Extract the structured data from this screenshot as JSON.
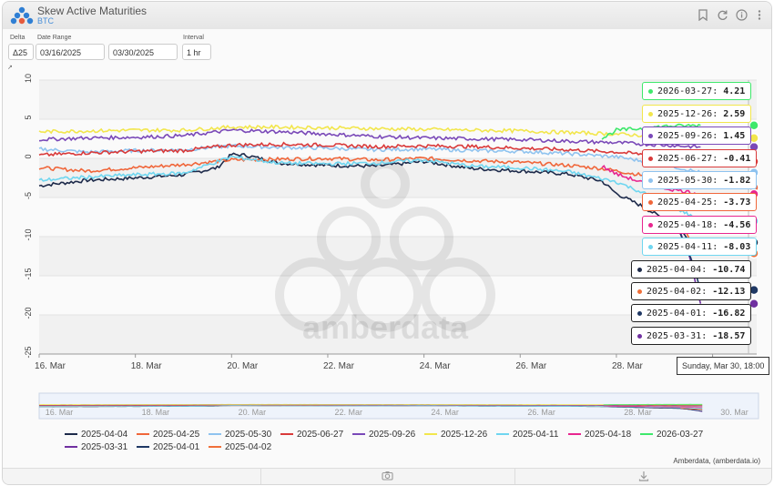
{
  "header": {
    "title": "Skew Active Maturities",
    "subtitle": "BTC",
    "icons": [
      "bookmark-icon",
      "refresh-icon",
      "info-icon",
      "menu-dots-icon"
    ]
  },
  "controls": {
    "delta_label": "Delta",
    "delta_value": "Δ25",
    "date_range_label": "Date Range",
    "date_start": "03/16/2025",
    "date_end": "03/30/2025",
    "interval_label": "Interval",
    "interval_value": "1 hr"
  },
  "watermark": "amberdata",
  "credit": "Amberdata, (amberdata.io)",
  "time_tooltip": "Sunday, Mar 30, 18:00",
  "chart_data": {
    "type": "line",
    "x_range": [
      "2025-03-16",
      "2025-03-30T22:00"
    ],
    "x_tick_labels": [
      "16. Mar",
      "18. Mar",
      "20. Mar",
      "22. Mar",
      "24. Mar",
      "26. Mar",
      "28. Mar",
      "30. Mar"
    ],
    "y_tick_labels": [
      "10",
      "5",
      "0",
      "-5",
      "-10",
      "-15",
      "-20",
      "-25"
    ],
    "ylim": [
      -25,
      10
    ],
    "y_ticks": [
      10,
      5,
      0,
      -5,
      -10,
      -15,
      -20,
      -25
    ],
    "grid": true,
    "legend_position": "bottom",
    "series": [
      {
        "name": "2025-04-04",
        "color": "#1d2a4a",
        "points": [
          [
            0,
            -3.5
          ],
          [
            1,
            -2.8
          ],
          [
            2,
            -2.5
          ],
          [
            3,
            -2.1
          ],
          [
            3.7,
            -1.2
          ],
          [
            4,
            0.5
          ],
          [
            4.3,
            0.4
          ],
          [
            5,
            -0.6
          ],
          [
            6,
            -0.9
          ],
          [
            7,
            -1.0
          ],
          [
            8,
            -0.4
          ],
          [
            9,
            -1.3
          ],
          [
            10,
            -1.6
          ],
          [
            11,
            -2.0
          ],
          [
            11.7,
            -2.9
          ],
          [
            12,
            -4.5
          ],
          [
            12.5,
            -6.0
          ],
          [
            13.2,
            -8.5
          ],
          [
            13.5,
            -10.2
          ],
          [
            13.75,
            -10.74
          ]
        ]
      },
      {
        "name": "2025-04-25",
        "color": "#f0663a",
        "points": [
          [
            0,
            -1.2
          ],
          [
            1,
            -1.6
          ],
          [
            2,
            -1.2
          ],
          [
            3,
            -0.8
          ],
          [
            4,
            -0.2
          ],
          [
            5,
            -0.1
          ],
          [
            6,
            0.0
          ],
          [
            7,
            -0.2
          ],
          [
            8,
            0.0
          ],
          [
            9,
            -0.3
          ],
          [
            10,
            -0.5
          ],
          [
            11,
            -0.9
          ],
          [
            11.7,
            -1.3
          ],
          [
            12,
            -1.6
          ],
          [
            13,
            -2.6
          ],
          [
            13.75,
            -3.73
          ]
        ]
      },
      {
        "name": "2025-05-30",
        "color": "#8fc3ef",
        "points": [
          [
            0,
            1.2
          ],
          [
            1,
            0.8
          ],
          [
            2,
            1.0
          ],
          [
            3,
            1.1
          ],
          [
            4,
            1.6
          ],
          [
            5,
            1.4
          ],
          [
            6,
            1.3
          ],
          [
            7,
            1.1
          ],
          [
            8,
            1.2
          ],
          [
            9,
            1.0
          ],
          [
            10,
            0.9
          ],
          [
            11,
            0.6
          ],
          [
            12,
            0.2
          ],
          [
            13,
            -0.8
          ],
          [
            13.75,
            -1.82
          ]
        ]
      },
      {
        "name": "2025-06-27",
        "color": "#d93a3a",
        "points": [
          [
            0,
            0.4
          ],
          [
            1,
            0.7
          ],
          [
            2,
            0.9
          ],
          [
            3,
            1.0
          ],
          [
            4,
            1.7
          ],
          [
            5,
            1.8
          ],
          [
            6,
            1.7
          ],
          [
            7,
            1.5
          ],
          [
            8,
            1.6
          ],
          [
            9,
            1.5
          ],
          [
            10,
            1.3
          ],
          [
            11,
            1.1
          ],
          [
            12,
            0.8
          ],
          [
            13,
            0.3
          ],
          [
            13.75,
            -0.41
          ]
        ]
      },
      {
        "name": "2025-09-26",
        "color": "#7a49b8",
        "points": [
          [
            0,
            2.4
          ],
          [
            1,
            2.6
          ],
          [
            2,
            2.7
          ],
          [
            3,
            2.9
          ],
          [
            4,
            3.6
          ],
          [
            5,
            3.4
          ],
          [
            6,
            3.1
          ],
          [
            7,
            2.8
          ],
          [
            8,
            2.6
          ],
          [
            9,
            2.5
          ],
          [
            10,
            2.4
          ],
          [
            11,
            2.2
          ],
          [
            12,
            2.0
          ],
          [
            13,
            1.7
          ],
          [
            13.75,
            1.45
          ]
        ]
      },
      {
        "name": "2025-12-26",
        "color": "#f2e64c",
        "points": [
          [
            0,
            3.4
          ],
          [
            1,
            3.5
          ],
          [
            2,
            3.6
          ],
          [
            3,
            3.6
          ],
          [
            4,
            4.0
          ],
          [
            5,
            4.0
          ],
          [
            6,
            3.9
          ],
          [
            7,
            3.8
          ],
          [
            8,
            3.7
          ],
          [
            9,
            3.6
          ],
          [
            10,
            3.5
          ],
          [
            11,
            3.3
          ],
          [
            12,
            3.1
          ],
          [
            13,
            2.8
          ],
          [
            13.75,
            2.59
          ]
        ]
      },
      {
        "name": "2025-04-11",
        "color": "#6fd6f0",
        "points": [
          [
            0,
            -2.8
          ],
          [
            1,
            -2.4
          ],
          [
            2,
            -2.1
          ],
          [
            3,
            -1.9
          ],
          [
            4,
            0.2
          ],
          [
            5,
            -0.6
          ],
          [
            6,
            -0.7
          ],
          [
            7,
            -0.6
          ],
          [
            8,
            -0.2
          ],
          [
            9,
            -1.0
          ],
          [
            10,
            -1.2
          ],
          [
            11,
            -1.7
          ],
          [
            12,
            -3.0
          ],
          [
            13,
            -5.5
          ],
          [
            13.75,
            -8.03
          ]
        ]
      },
      {
        "name": "2025-04-18",
        "color": "#e8268f",
        "points": [
          [
            11.7,
            -1.0
          ],
          [
            12,
            -2.0
          ],
          [
            12.5,
            -3.0
          ],
          [
            13,
            -3.8
          ],
          [
            13.75,
            -4.56
          ]
        ]
      },
      {
        "name": "2026-03-27",
        "color": "#3ee86b",
        "points": [
          [
            11.7,
            2.5
          ],
          [
            12,
            3.6
          ],
          [
            12.5,
            3.8
          ],
          [
            13,
            4.1
          ],
          [
            13.75,
            4.21
          ]
        ]
      },
      {
        "name": "2025-03-31",
        "color": "#7030a0",
        "points": [
          [
            13.3,
            -9.0
          ],
          [
            13.5,
            -12.0
          ],
          [
            13.75,
            -18.57
          ]
        ]
      },
      {
        "name": "2025-04-01",
        "color": "#1f3864",
        "points": [
          [
            13.3,
            -9.0
          ],
          [
            13.5,
            -12.0
          ],
          [
            13.75,
            -16.82
          ]
        ]
      },
      {
        "name": "2025-04-02",
        "color": "#f0703a",
        "points": [
          [
            13.3,
            -8.0
          ],
          [
            13.5,
            -10.0
          ],
          [
            13.75,
            -12.13
          ]
        ]
      }
    ],
    "legend": [
      {
        "name": "2025-04-04",
        "color": "#1d2a4a"
      },
      {
        "name": "2025-04-25",
        "color": "#f0663a"
      },
      {
        "name": "2025-05-30",
        "color": "#8fc3ef"
      },
      {
        "name": "2025-06-27",
        "color": "#d93a3a"
      },
      {
        "name": "2025-09-26",
        "color": "#7a49b8"
      },
      {
        "name": "2025-12-26",
        "color": "#f2e64c"
      },
      {
        "name": "2025-04-11",
        "color": "#6fd6f0"
      },
      {
        "name": "2025-04-18",
        "color": "#e8268f"
      },
      {
        "name": "2026-03-27",
        "color": "#3ee86b"
      },
      {
        "name": "2025-03-31",
        "color": "#7030a0"
      },
      {
        "name": "2025-04-01",
        "color": "#1f3864"
      },
      {
        "name": "2025-04-02",
        "color": "#f0703a"
      }
    ],
    "tooltip": [
      {
        "name": "2026-03-27",
        "value": "4.21",
        "color": "#3ee86b"
      },
      {
        "name": "2025-12-26",
        "value": "2.59",
        "color": "#f2e64c"
      },
      {
        "name": "2025-09-26",
        "value": "1.45",
        "color": "#7a49b8"
      },
      {
        "name": "2025-06-27",
        "value": "-0.41",
        "color": "#d93a3a"
      },
      {
        "name": "2025-05-30",
        "value": "-1.82",
        "color": "#8fc3ef"
      },
      {
        "name": "2025-04-25",
        "value": "-3.73",
        "color": "#f0663a"
      },
      {
        "name": "2025-04-18",
        "value": "-4.56",
        "color": "#e8268f"
      },
      {
        "name": "2025-04-11",
        "value": "-8.03",
        "color": "#6fd6f0"
      },
      {
        "name": "2025-04-04",
        "value": "-10.74",
        "color": "#1d2a4a"
      },
      {
        "name": "2025-04-02",
        "value": "-12.13",
        "color": "#f0703a"
      },
      {
        "name": "2025-04-01",
        "value": "-16.82",
        "color": "#1f3864"
      },
      {
        "name": "2025-03-31",
        "value": "-18.57",
        "color": "#7030a0"
      }
    ]
  }
}
